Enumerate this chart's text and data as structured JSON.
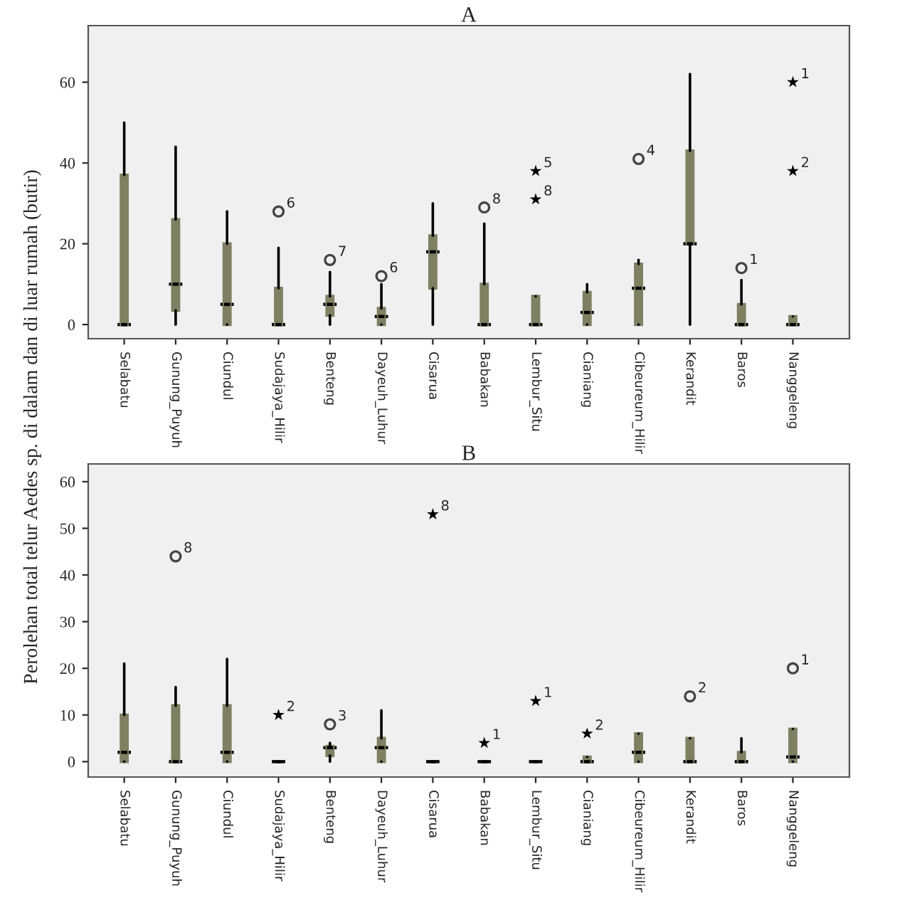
{
  "chart_data": [
    {
      "type": "box",
      "title": "A",
      "ylabel": "Perolehan total telur Aedes sp. di dalam dan di luar rumah (butir)",
      "color": "#7f7f62",
      "categories": [
        "Selabatu",
        "Gunung_Puyuh",
        "Ciundul",
        "Sudajaya_Hilir",
        "Benteng",
        "Dayeuh_Luhur",
        "Cisarua",
        "Babakan",
        "Lembur_Situ",
        "Cianiang",
        "Cibeureum_Hilir",
        "Kerandit",
        "Baros",
        "Nanggeleng"
      ],
      "boxes": [
        {
          "low": 0,
          "q1": 0,
          "median": 0,
          "q3": 37,
          "high": 50
        },
        {
          "low": 0,
          "q1": 3.5,
          "median": 10,
          "q3": 26,
          "high": 44
        },
        {
          "low": 0,
          "q1": 0,
          "median": 5,
          "q3": 20,
          "high": 28
        },
        {
          "low": 0,
          "q1": 0,
          "median": 0,
          "q3": 9,
          "high": 19
        },
        {
          "low": 0,
          "q1": 2.3,
          "median": 5,
          "q3": 7,
          "high": 13
        },
        {
          "low": 0,
          "q1": 0,
          "median": 2,
          "q3": 4,
          "high": 10
        },
        {
          "low": 0,
          "q1": 9,
          "median": 18,
          "q3": 22,
          "high": 30
        },
        {
          "low": 0,
          "q1": 0,
          "median": 0,
          "q3": 10,
          "high": 25
        },
        {
          "low": 0,
          "q1": 0,
          "median": 0,
          "q3": 7,
          "high": 7
        },
        {
          "low": 0,
          "q1": 0,
          "median": 3,
          "q3": 8,
          "high": 10
        },
        {
          "low": 0,
          "q1": 0,
          "median": 9,
          "q3": 15,
          "high": 16
        },
        {
          "low": 0,
          "q1": 20,
          "median": 20,
          "q3": 43,
          "high": 62
        },
        {
          "low": 0,
          "q1": 0,
          "median": 0,
          "q3": 5,
          "high": 11
        },
        {
          "low": 0,
          "q1": 0,
          "median": 0,
          "q3": 2,
          "high": 2
        }
      ],
      "series": [
        {
          "type": "scatter",
          "marker": "circle",
          "color": "#444444",
          "x": [
            "Sudajaya_Hilir",
            "Benteng",
            "Dayeuh_Luhur",
            "Babakan",
            "Cibeureum_Hilir",
            "Baros"
          ],
          "values": [
            28,
            16,
            12,
            29,
            41,
            14
          ]
        },
        {
          "type": "scatter",
          "marker": "star",
          "color": "#000000",
          "x": [
            "Lembur_Situ",
            "Lembur_Situ",
            "Nanggeleng",
            "Nanggeleng"
          ],
          "values": [
            38,
            31,
            60,
            38
          ]
        }
      ],
      "ylim": [
        -3.5,
        74
      ],
      "yticks": [
        0,
        20,
        40,
        60
      ],
      "grid": false,
      "annotations": [
        {
          "text": "6",
          "x": "Sudajaya_Hilir",
          "y": 28
        },
        {
          "text": "7",
          "x": "Benteng",
          "y": 16
        },
        {
          "text": "6",
          "x": "Dayeuh_Luhur",
          "y": 12
        },
        {
          "text": "8",
          "x": "Babakan",
          "y": 29
        },
        {
          "text": "5",
          "x": "Lembur_Situ",
          "y": 38
        },
        {
          "text": "8",
          "x": "Lembur_Situ",
          "y": 31
        },
        {
          "text": "4",
          "x": "Cibeureum_Hilir",
          "y": 41
        },
        {
          "text": "1",
          "x": "Baros",
          "y": 14
        },
        {
          "text": "1",
          "x": "Nanggeleng",
          "y": 60
        },
        {
          "text": "2",
          "x": "Nanggeleng",
          "y": 38
        }
      ]
    },
    {
      "type": "box",
      "title": "B",
      "color": "#7f7f62",
      "categories": [
        "Selabatu",
        "Gunung_Puyuh",
        "Ciundul",
        "Sudajaya_Hilir",
        "Benteng",
        "Dayeuh_Luhur",
        "Cisarua",
        "Babakan",
        "Lembur_Situ",
        "Cianiang",
        "Cibeureum_Hilir",
        "Kerandit",
        "Baros",
        "Nanggeleng"
      ],
      "boxes": [
        {
          "low": 0,
          "q1": 0,
          "median": 2,
          "q3": 10,
          "high": 21
        },
        {
          "low": 0,
          "q1": 0,
          "median": 0,
          "q3": 12,
          "high": 16
        },
        {
          "low": 0,
          "q1": 0,
          "median": 2,
          "q3": 12,
          "high": 22
        },
        {
          "low": 0,
          "q1": 0,
          "median": 0,
          "q3": 0,
          "high": 0
        },
        {
          "low": 0,
          "q1": 1.3,
          "median": 3,
          "q3": 3.3,
          "high": 4
        },
        {
          "low": 0,
          "q1": 0,
          "median": 3,
          "q3": 5,
          "high": 11
        },
        {
          "low": 0,
          "q1": 0,
          "median": 0,
          "q3": 0,
          "high": 0
        },
        {
          "low": 0,
          "q1": 0,
          "median": 0,
          "q3": 0,
          "high": 0
        },
        {
          "low": 0,
          "q1": 0,
          "median": 0,
          "q3": 0,
          "high": 0
        },
        {
          "low": 0,
          "q1": 0,
          "median": 0,
          "q3": 1,
          "high": 1
        },
        {
          "low": 0,
          "q1": 0,
          "median": 2,
          "q3": 6,
          "high": 6
        },
        {
          "low": 0,
          "q1": 0,
          "median": 0,
          "q3": 5,
          "high": 5
        },
        {
          "low": 0,
          "q1": 0,
          "median": 0,
          "q3": 2,
          "high": 5
        },
        {
          "low": 0,
          "q1": 0,
          "median": 1,
          "q3": 7,
          "high": 7
        }
      ],
      "series": [
        {
          "type": "scatter",
          "marker": "circle",
          "color": "#444444",
          "x": [
            "Gunung_Puyuh",
            "Benteng",
            "Kerandit",
            "Nanggeleng"
          ],
          "values": [
            44,
            8,
            14,
            20
          ]
        },
        {
          "type": "scatter",
          "marker": "star",
          "color": "#000000",
          "x": [
            "Sudajaya_Hilir",
            "Cisarua",
            "Babakan",
            "Lembur_Situ",
            "Cianiang"
          ],
          "values": [
            10,
            53,
            4,
            13,
            6
          ]
        }
      ],
      "ylim": [
        -3.3,
        63.8
      ],
      "yticks": [
        0,
        10,
        20,
        30,
        40,
        50,
        60
      ],
      "grid": false,
      "annotations": [
        {
          "text": "8",
          "x": "Gunung_Puyuh",
          "y": 44
        },
        {
          "text": "2",
          "x": "Sudajaya_Hilir",
          "y": 10
        },
        {
          "text": "3",
          "x": "Benteng",
          "y": 8
        },
        {
          "text": "8",
          "x": "Cisarua",
          "y": 53
        },
        {
          "text": "1",
          "x": "Babakan",
          "y": 4
        },
        {
          "text": "1",
          "x": "Lembur_Situ",
          "y": 13
        },
        {
          "text": "2",
          "x": "Cianiang",
          "y": 6
        },
        {
          "text": "2",
          "x": "Kerandit",
          "y": 14
        },
        {
          "text": "1",
          "x": "Nanggeleng",
          "y": 20
        }
      ]
    }
  ]
}
